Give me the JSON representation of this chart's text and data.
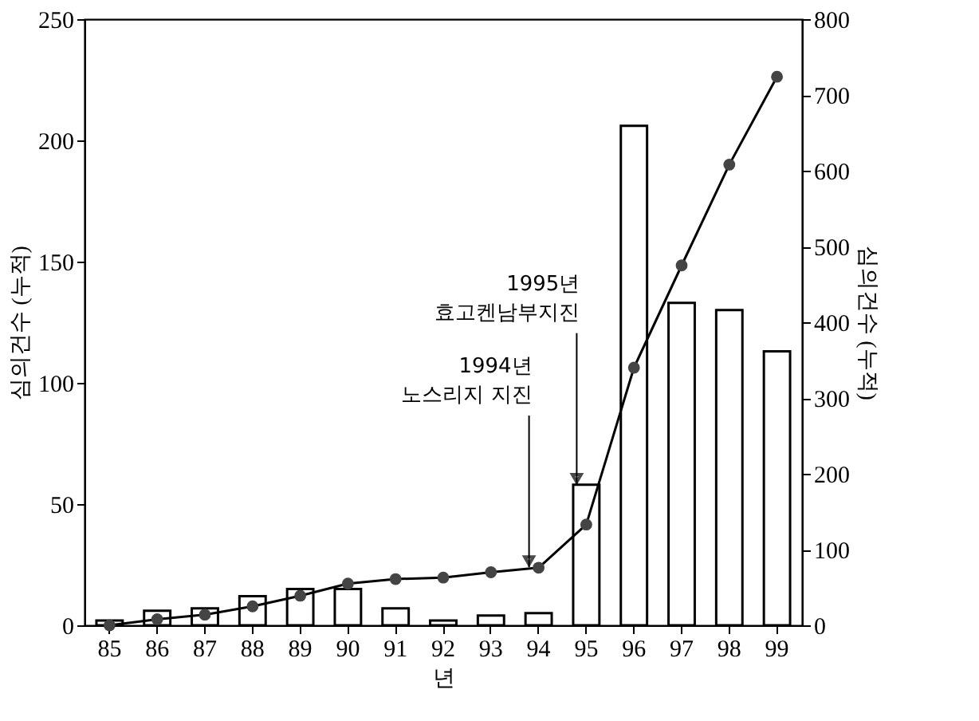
{
  "chart_data": {
    "type": "bar",
    "xlabel": "년",
    "ylabel": "심의건수 (누적)",
    "y2label": "심의건수 (누적)",
    "categories": [
      "85",
      "86",
      "87",
      "88",
      "89",
      "90",
      "91",
      "92",
      "93",
      "94",
      "95",
      "96",
      "97",
      "98",
      "99"
    ],
    "series": [
      {
        "color": "#ffffff",
        "values": [
          2,
          6,
          7,
          12,
          15,
          15,
          7,
          2,
          4,
          5,
          58,
          206,
          133,
          130,
          113
        ]
      },
      {
        "type": "line",
        "axis": "y2",
        "color": "#444444",
        "marker": "circle",
        "line_style": "solid",
        "values": [
          0,
          8,
          14,
          25,
          39,
          55,
          61,
          63,
          70,
          76,
          133,
          340,
          475,
          608,
          724
        ]
      }
    ],
    "ylim": [
      0,
      250
    ],
    "yticks": [
      0,
      50,
      100,
      150,
      200,
      250
    ],
    "y2lim": [
      0,
      800
    ],
    "y2ticks": [
      0,
      100,
      200,
      300,
      400,
      500,
      600,
      700,
      800
    ],
    "annotations": [
      {
        "text": "1994년\n노스리지 지진",
        "x": "94",
        "y": 24
      },
      {
        "text": "1995년\n효고켄남부지진",
        "x": "95",
        "y": 58
      }
    ],
    "grid": false
  }
}
